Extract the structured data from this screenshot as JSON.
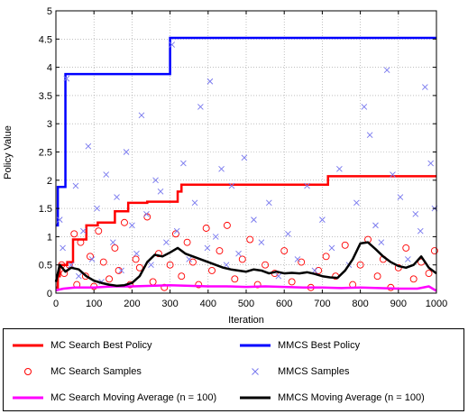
{
  "chart_data": {
    "type": "line",
    "xlabel": "Iteration",
    "ylabel": "Policy Value",
    "xlim": [
      0,
      1000
    ],
    "ylim": [
      0,
      5
    ],
    "xticks": [
      0,
      100,
      200,
      300,
      400,
      500,
      600,
      700,
      800,
      900,
      1000
    ],
    "yticks": [
      0,
      0.5,
      1,
      1.5,
      2,
      2.5,
      3,
      3.5,
      4,
      4.5,
      5
    ],
    "xtick_labels": [
      "0",
      "100",
      "200",
      "300",
      "400",
      "500",
      "600",
      "700",
      "800",
      "900",
      "1000"
    ],
    "ytick_labels": [
      "0",
      "0.5",
      "1",
      "1.5",
      "2",
      "2.5",
      "3",
      "3.5",
      "4",
      "4.5",
      "5"
    ],
    "grid": true,
    "legend_placement": "below",
    "series": [
      {
        "name": "MC Search Best Policy",
        "kind": "step-line",
        "color": "#ff0000",
        "x": [
          0,
          5,
          10,
          30,
          45,
          80,
          110,
          155,
          190,
          240,
          320,
          330,
          560,
          700,
          715,
          1000
        ],
        "y": [
          0.1,
          0.3,
          0.5,
          0.55,
          0.95,
          1.2,
          1.25,
          1.45,
          1.6,
          1.62,
          1.8,
          1.92,
          1.92,
          1.92,
          2.07,
          2.07
        ]
      },
      {
        "name": "MMCS Best Policy",
        "kind": "step-line",
        "color": "#0000ff",
        "x": [
          0,
          5,
          25,
          300,
          1000
        ],
        "y": [
          1.2,
          1.88,
          3.88,
          4.52,
          4.52
        ]
      },
      {
        "name": "MC Search Samples",
        "kind": "scatter",
        "marker": "circle",
        "color": "#ff0000",
        "x": [
          15,
          22,
          35,
          48,
          55,
          65,
          78,
          90,
          100,
          112,
          125,
          140,
          155,
          165,
          180,
          195,
          210,
          220,
          240,
          255,
          270,
          285,
          300,
          315,
          330,
          345,
          360,
          375,
          395,
          410,
          430,
          450,
          470,
          490,
          510,
          530,
          550,
          575,
          600,
          620,
          645,
          670,
          690,
          710,
          735,
          760,
          780,
          800,
          820,
          845,
          860,
          880,
          900,
          920,
          940,
          960,
          980,
          995
        ],
        "y": [
          0.5,
          0.35,
          0.5,
          1.05,
          0.15,
          0.9,
          0.3,
          0.65,
          0.12,
          1.1,
          0.55,
          0.25,
          0.8,
          0.4,
          1.25,
          0.15,
          0.6,
          0.45,
          1.35,
          0.2,
          0.7,
          0.1,
          0.5,
          1.05,
          0.3,
          0.9,
          0.55,
          0.15,
          1.15,
          0.4,
          0.75,
          1.2,
          0.25,
          0.6,
          0.95,
          0.15,
          0.5,
          0.35,
          0.75,
          0.2,
          0.55,
          0.1,
          0.4,
          0.65,
          0.3,
          0.85,
          0.15,
          0.5,
          0.95,
          0.3,
          0.6,
          0.1,
          0.45,
          0.8,
          0.25,
          0.55,
          0.35,
          0.75
        ]
      },
      {
        "name": "MMCS Samples",
        "kind": "scatter",
        "marker": "x",
        "color": "#7777ee",
        "x": [
          10,
          18,
          28,
          40,
          52,
          60,
          72,
          85,
          95,
          108,
          120,
          132,
          150,
          160,
          172,
          185,
          200,
          212,
          225,
          238,
          250,
          262,
          275,
          290,
          305,
          318,
          335,
          350,
          365,
          380,
          398,
          405,
          420,
          435,
          448,
          462,
          480,
          495,
          520,
          540,
          560,
          585,
          610,
          635,
          660,
          680,
          700,
          725,
          745,
          770,
          790,
          810,
          825,
          840,
          855,
          870,
          885,
          905,
          925,
          945,
          958,
          970,
          985,
          995
        ],
        "y": [
          1.3,
          0.8,
          3.8,
          0.5,
          1.9,
          0.3,
          1.1,
          2.6,
          0.6,
          1.5,
          0.2,
          2.1,
          0.9,
          1.7,
          0.4,
          2.5,
          1.2,
          0.7,
          3.15,
          1.4,
          0.5,
          2.0,
          1.8,
          0.9,
          4.4,
          1.1,
          2.3,
          0.6,
          1.6,
          3.3,
          0.8,
          3.75,
          1.0,
          2.2,
          0.5,
          1.9,
          0.7,
          2.4,
          1.3,
          0.9,
          1.6,
          0.3,
          1.05,
          0.6,
          1.9,
          0.4,
          1.3,
          0.8,
          2.2,
          0.5,
          1.6,
          3.3,
          2.8,
          1.2,
          0.9,
          3.95,
          2.1,
          1.7,
          0.6,
          1.4,
          1.1,
          3.65,
          2.3,
          1.5
        ]
      },
      {
        "name": "MC Search Moving Average (n = 100)",
        "kind": "line",
        "color": "#ff00ff",
        "x": [
          0,
          20,
          50,
          100,
          150,
          200,
          250,
          300,
          350,
          400,
          450,
          500,
          550,
          600,
          650,
          700,
          750,
          800,
          850,
          900,
          950,
          980,
          1000
        ],
        "y": [
          0.05,
          0.08,
          0.1,
          0.1,
          0.12,
          0.12,
          0.13,
          0.14,
          0.13,
          0.12,
          0.12,
          0.11,
          0.12,
          0.11,
          0.1,
          0.1,
          0.09,
          0.1,
          0.09,
          0.08,
          0.08,
          0.12,
          0.04
        ]
      },
      {
        "name": "MMCS Moving Average (n = 100)",
        "kind": "line",
        "color": "#000000",
        "x": [
          0,
          10,
          25,
          40,
          60,
          80,
          100,
          120,
          140,
          160,
          180,
          200,
          220,
          240,
          260,
          280,
          300,
          320,
          340,
          360,
          380,
          400,
          420,
          440,
          460,
          480,
          500,
          520,
          540,
          560,
          580,
          600,
          620,
          640,
          660,
          680,
          700,
          720,
          740,
          760,
          780,
          800,
          820,
          840,
          860,
          880,
          900,
          920,
          940,
          960,
          980,
          1000
        ],
        "y": [
          0.2,
          0.5,
          0.38,
          0.45,
          0.42,
          0.3,
          0.22,
          0.18,
          0.15,
          0.13,
          0.14,
          0.18,
          0.3,
          0.55,
          0.68,
          0.65,
          0.72,
          0.8,
          0.7,
          0.65,
          0.6,
          0.55,
          0.5,
          0.45,
          0.42,
          0.4,
          0.38,
          0.42,
          0.4,
          0.35,
          0.38,
          0.35,
          0.36,
          0.35,
          0.37,
          0.34,
          0.3,
          0.28,
          0.27,
          0.4,
          0.6,
          0.88,
          0.9,
          0.78,
          0.65,
          0.55,
          0.48,
          0.45,
          0.5,
          0.65,
          0.45,
          0.35
        ]
      }
    ]
  }
}
